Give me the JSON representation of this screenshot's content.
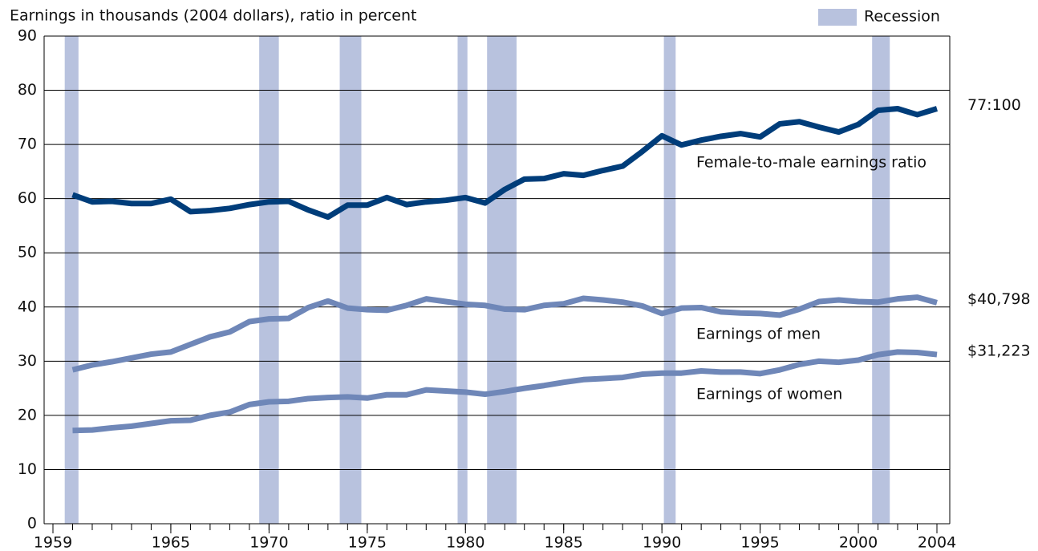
{
  "chart_data": {
    "type": "line",
    "y_axis_label": "Earnings in thousands (2004 dollars), ratio in percent",
    "legend_label": "Recession",
    "recession_color": "#b8c2de",
    "recessions": [
      [
        1959.6,
        1960.3
      ],
      [
        1969.5,
        1970.5
      ],
      [
        1973.6,
        1974.7
      ],
      [
        1979.6,
        1980.1
      ],
      [
        1981.1,
        1982.6
      ],
      [
        1990.1,
        1990.7
      ],
      [
        2000.7,
        2001.6
      ]
    ],
    "x": [
      1960,
      1961,
      1962,
      1963,
      1964,
      1965,
      1966,
      1967,
      1968,
      1969,
      1970,
      1971,
      1972,
      1973,
      1974,
      1975,
      1976,
      1977,
      1978,
      1979,
      1980,
      1981,
      1982,
      1983,
      1984,
      1985,
      1986,
      1987,
      1988,
      1989,
      1990,
      1991,
      1992,
      1993,
      1994,
      1995,
      1996,
      1997,
      1998,
      1999,
      2000,
      2001,
      2002,
      2003,
      2004
    ],
    "xlim": [
      1959,
      2004
    ],
    "xticks": [
      1959,
      1965,
      1970,
      1975,
      1980,
      1985,
      1990,
      1995,
      2000,
      2004
    ],
    "ylim": [
      0,
      90
    ],
    "yticks": [
      0,
      10,
      20,
      30,
      40,
      50,
      60,
      70,
      80,
      90
    ],
    "grid": true,
    "series": [
      {
        "name": "Female-to-male earnings ratio",
        "color": "#003d7a",
        "end_label": "77:100",
        "values": [
          60.7,
          59.4,
          59.5,
          59.1,
          59.1,
          59.9,
          57.6,
          57.8,
          58.2,
          58.9,
          59.4,
          59.5,
          57.9,
          56.6,
          58.8,
          58.8,
          60.2,
          58.9,
          59.4,
          59.7,
          60.2,
          59.2,
          61.7,
          63.6,
          63.7,
          64.6,
          64.3,
          65.2,
          66.0,
          68.7,
          71.6,
          69.9,
          70.8,
          71.5,
          72.0,
          71.4,
          73.8,
          74.2,
          73.2,
          72.3,
          73.7,
          76.3,
          76.6,
          75.5,
          76.6
        ]
      },
      {
        "name": "Earnings of men",
        "color": "#6f87b8",
        "end_label": "$40,798",
        "values": [
          28.4,
          29.3,
          29.9,
          30.6,
          31.3,
          31.7,
          33.1,
          34.5,
          35.4,
          37.3,
          37.8,
          37.9,
          39.9,
          41.1,
          39.8,
          39.5,
          39.4,
          40.3,
          41.5,
          41.0,
          40.5,
          40.3,
          39.6,
          39.5,
          40.3,
          40.6,
          41.6,
          41.3,
          40.9,
          40.2,
          38.8,
          39.8,
          39.9,
          39.1,
          38.9,
          38.8,
          38.5,
          39.6,
          41.0,
          41.3,
          41.0,
          40.9,
          41.5,
          41.8,
          40.798
        ]
      },
      {
        "name": "Earnings of women",
        "color": "#6f87b8",
        "end_label": "$31,223",
        "values": [
          17.2,
          17.3,
          17.7,
          18.0,
          18.5,
          19.0,
          19.1,
          20.0,
          20.6,
          22.0,
          22.5,
          22.6,
          23.1,
          23.3,
          23.4,
          23.2,
          23.8,
          23.8,
          24.7,
          24.5,
          24.3,
          23.9,
          24.4,
          25.0,
          25.5,
          26.1,
          26.6,
          26.8,
          27.0,
          27.6,
          27.8,
          27.8,
          28.2,
          28.0,
          28.0,
          27.7,
          28.4,
          29.4,
          30.0,
          29.8,
          30.2,
          31.2,
          31.7,
          31.6,
          31.223
        ]
      }
    ]
  }
}
